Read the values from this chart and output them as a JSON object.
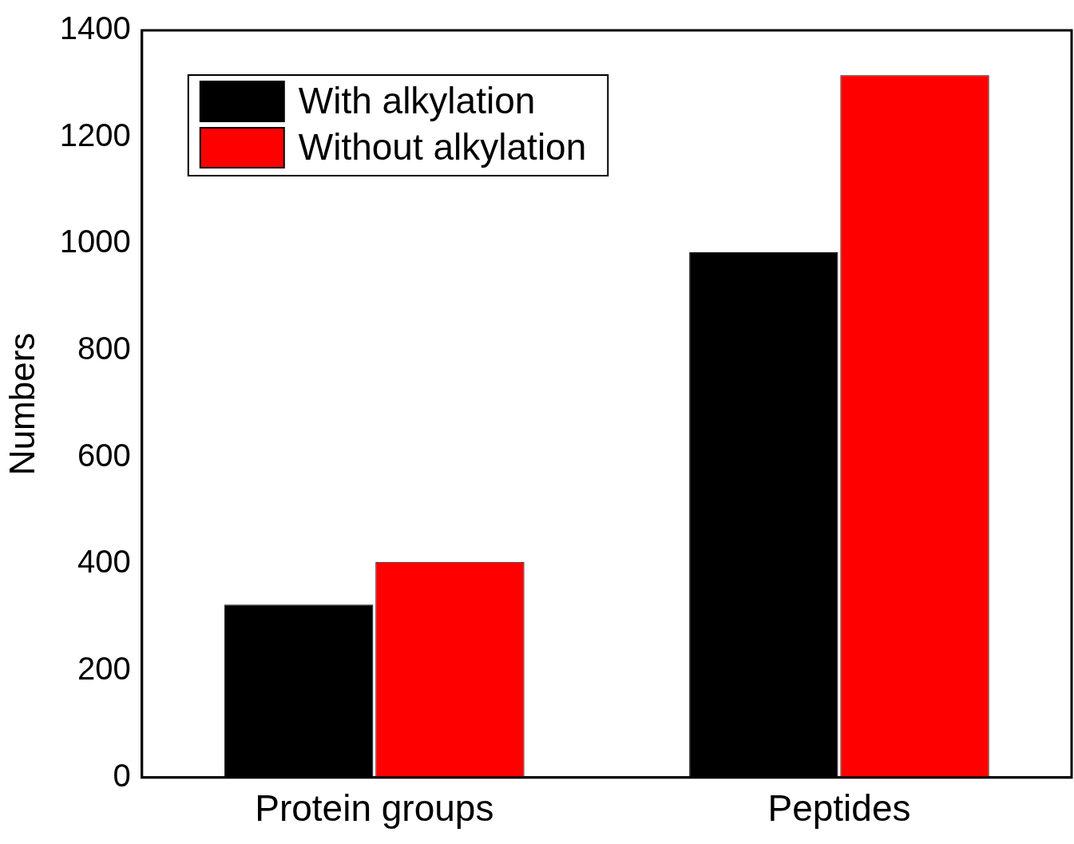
{
  "chart_data": {
    "type": "bar",
    "ylabel": "Numbers",
    "categories": [
      "Protein groups",
      "Peptides"
    ],
    "series": [
      {
        "name": "With alkylation",
        "color": "#000000",
        "values": [
          324,
          984
        ]
      },
      {
        "name": "Without alkylation",
        "color": "#ff0000",
        "values": [
          404,
          1316
        ]
      }
    ],
    "ylim": [
      0,
      1400
    ],
    "yticks": [
      0,
      200,
      400,
      600,
      800,
      1000,
      1200,
      1400
    ],
    "grid": false,
    "legend": "top left"
  }
}
